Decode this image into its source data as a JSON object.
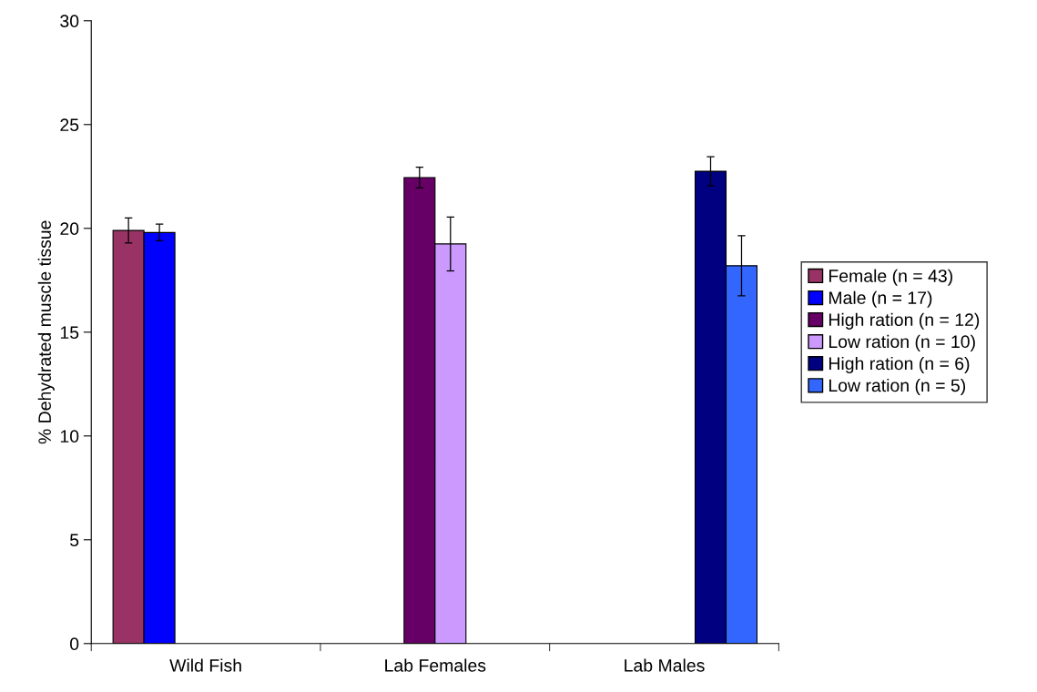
{
  "chart_data": {
    "type": "bar",
    "ylabel": "% Dehydrated muscle tissue",
    "categories": [
      "Wild Fish",
      "Lab Females",
      "Lab Males"
    ],
    "series": [
      {
        "name": "Female (n = 43)",
        "color": "#993366",
        "values": [
          19.9,
          null,
          null
        ],
        "errors": [
          0.6,
          null,
          null
        ]
      },
      {
        "name": "Male (n = 17)",
        "color": "#0000ff",
        "values": [
          19.8,
          null,
          null
        ],
        "errors": [
          0.4,
          null,
          null
        ]
      },
      {
        "name": "High ration (n = 12)",
        "color": "#660066",
        "values": [
          null,
          22.45,
          null
        ],
        "errors": [
          null,
          0.5,
          null
        ]
      },
      {
        "name": "Low ration (n = 10)",
        "color": "#cc99ff",
        "values": [
          null,
          19.25,
          null
        ],
        "errors": [
          null,
          1.3,
          null
        ]
      },
      {
        "name": "High ration (n = 6)",
        "color": "#000080",
        "values": [
          null,
          null,
          22.75
        ],
        "errors": [
          null,
          null,
          0.7
        ]
      },
      {
        "name": "Low ration (n = 5)",
        "color": "#3366ff",
        "values": [
          null,
          null,
          18.2
        ],
        "errors": [
          null,
          null,
          1.45
        ]
      }
    ],
    "ylim": [
      0,
      30
    ],
    "yticks": [
      0,
      5,
      10,
      15,
      20,
      25,
      30
    ],
    "grid": false,
    "legend": "right"
  }
}
